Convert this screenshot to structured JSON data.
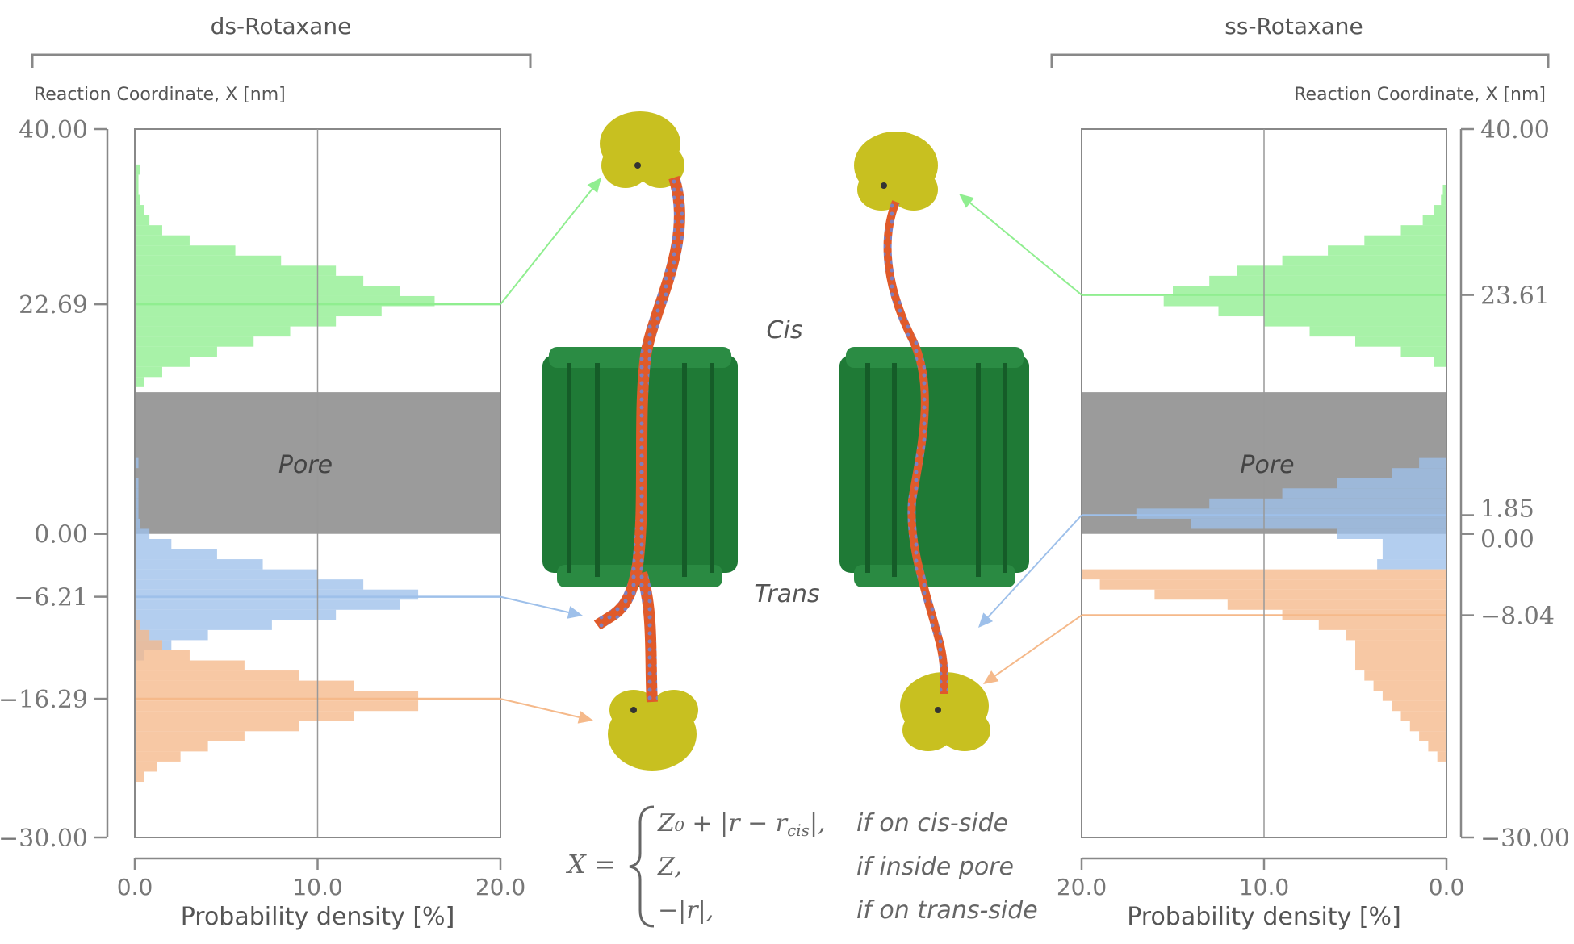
{
  "chart_data": [
    {
      "type": "histogram",
      "title": "ds-Rotaxane",
      "ylabel": "Reaction Coordinate,  X  [nm]",
      "xlabel": "Probability density [%]",
      "xlim": [
        0,
        20
      ],
      "ylim": [
        -30,
        40
      ],
      "xticks": [
        "0.0",
        "10.0",
        "20.0"
      ],
      "yticks": [
        "40.00",
        "22.69",
        "0.00",
        "−6.21",
        "−16.29",
        "−30.00"
      ],
      "pore_label": "Pore",
      "pore_range": [
        0,
        14
      ],
      "series": [
        {
          "color": "#90ee90",
          "mean": 22.69,
          "y": [
            36,
            35,
            34,
            33,
            32,
            31,
            30,
            29,
            28,
            27,
            26,
            25,
            24,
            23,
            22,
            21,
            20,
            19,
            18,
            17,
            16,
            15
          ],
          "values": [
            0.3,
            0.2,
            0.2,
            0.3,
            0.5,
            0.8,
            1.5,
            3.0,
            5.5,
            8.0,
            11.0,
            12.5,
            14.5,
            16.4,
            13.5,
            11.0,
            8.5,
            6.5,
            4.5,
            3.0,
            1.5,
            0.5
          ]
        },
        {
          "color": "#9ec0ea",
          "mean": -6.21,
          "y": [
            7,
            5,
            4,
            3,
            2,
            1,
            0,
            -1,
            -2,
            -3,
            -4,
            -5,
            -6,
            -7,
            -8,
            -9,
            -10,
            -11,
            -12
          ],
          "values": [
            0.2,
            0.2,
            0.2,
            0.2,
            0.2,
            0.3,
            0.8,
            2.0,
            4.5,
            7.0,
            10.0,
            12.5,
            15.5,
            14.5,
            11.0,
            7.5,
            4.0,
            2.0,
            0.5
          ]
        },
        {
          "color": "#f5b98a",
          "mean": -16.29,
          "y": [
            -9,
            -10,
            -11,
            -12,
            -13,
            -14,
            -15,
            -16,
            -17,
            -18,
            -19,
            -20,
            -21,
            -22,
            -23,
            -24
          ],
          "values": [
            0.3,
            0.8,
            1.5,
            3.0,
            6.0,
            9.0,
            12.0,
            15.5,
            15.5,
            12.0,
            9.0,
            6.0,
            4.0,
            2.5,
            1.2,
            0.5
          ]
        }
      ]
    },
    {
      "type": "histogram",
      "title": "ss-Rotaxane",
      "ylabel": "Reaction Coordinate,  X  [nm]",
      "xlabel": "Probability density [%]",
      "xlim": [
        20,
        0
      ],
      "ylim": [
        -30,
        40
      ],
      "xticks": [
        "20.0",
        "10.0",
        "0.0"
      ],
      "yticks": [
        "40.00",
        "23.61",
        "1.85",
        "0.00",
        "−8.04",
        "−30.00"
      ],
      "pore_label": "Pore",
      "pore_range": [
        0,
        14
      ],
      "series": [
        {
          "color": "#90ee90",
          "mean": 23.61,
          "y": [
            34,
            33,
            32,
            31,
            30,
            29,
            28,
            27,
            26,
            25,
            24,
            23,
            22,
            21,
            20,
            19,
            18,
            17
          ],
          "values": [
            0.2,
            0.3,
            0.7,
            1.3,
            2.5,
            4.5,
            6.5,
            9.0,
            11.5,
            13.0,
            15.0,
            15.5,
            12.5,
            10.0,
            7.5,
            5.0,
            2.5,
            0.7
          ]
        },
        {
          "color": "#9ec0ea",
          "mean": 1.85,
          "y": [
            7,
            6,
            5,
            4,
            3,
            2,
            1,
            0,
            -1,
            -2,
            -3
          ],
          "values": [
            1.5,
            3.0,
            6.0,
            9.0,
            13.0,
            17.0,
            14.0,
            6.0,
            3.5,
            3.5,
            3.8
          ]
        },
        {
          "color": "#f5b98a",
          "mean": -8.04,
          "y": [
            -4,
            -5,
            -6,
            -7,
            -8,
            -9,
            -10,
            -11,
            -12,
            -13,
            -14,
            -15,
            -16,
            -17,
            -18,
            -19,
            -20,
            -21,
            -22
          ],
          "values": [
            20.0,
            19.0,
            16.0,
            12.0,
            9.0,
            7.0,
            5.5,
            5.0,
            5.0,
            5.0,
            4.5,
            4.0,
            3.5,
            3.0,
            2.5,
            2.0,
            1.5,
            1.0,
            0.5
          ]
        }
      ]
    }
  ],
  "center": {
    "cis_label": "Cis",
    "trans_label": "Trans"
  },
  "equation": {
    "lhs": "X =",
    "cases": [
      {
        "expr": "Z₀ + |r − r",
        "sub": "cis",
        "tail": "|,",
        "cond": "if on cis-side"
      },
      {
        "expr": "Z,",
        "sub": "",
        "tail": "",
        "cond": "if inside pore"
      },
      {
        "expr": "−|r|,",
        "sub": "",
        "tail": "",
        "cond": "if on trans-side"
      }
    ]
  },
  "colors": {
    "green": "#90ee90",
    "blue": "#9ec0ea",
    "orange": "#f5b98a",
    "pore": "#8a8a8a",
    "protein_pore": "#1f7a36",
    "protein_cap": "#c8c020"
  }
}
